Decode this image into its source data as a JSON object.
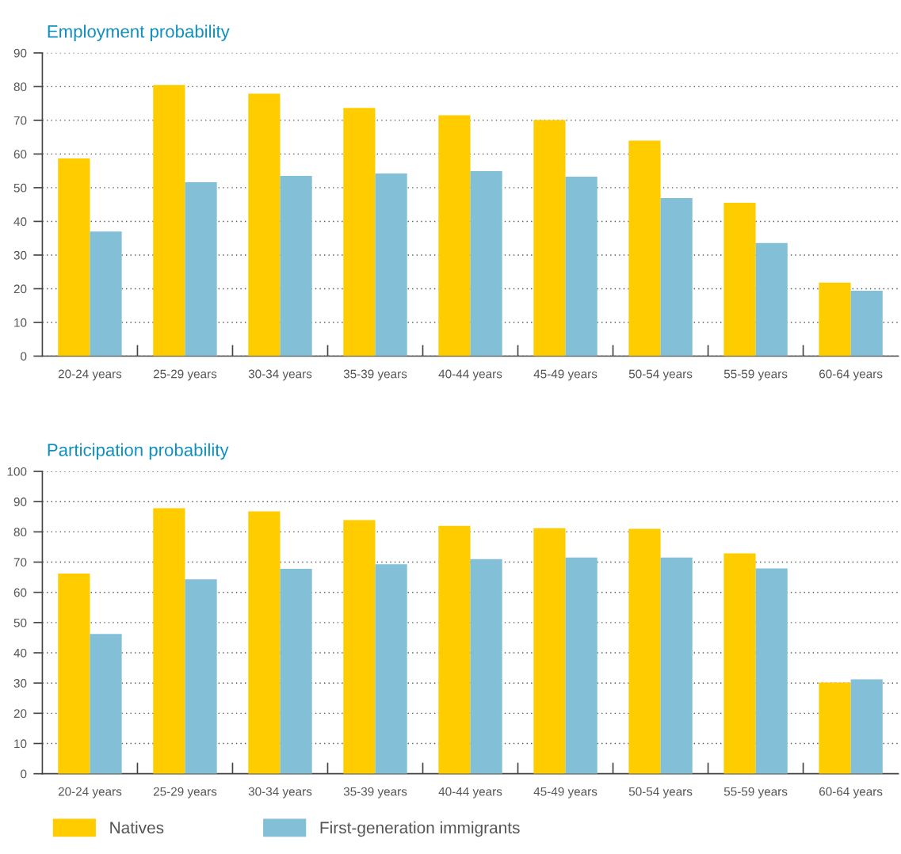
{
  "chart_data": [
    {
      "type": "bar",
      "title": "Employment probability",
      "categories": [
        "20-24 years",
        "25-29 years",
        "30-34 years",
        "35-39 years",
        "40-44 years",
        "45-49 years",
        "50-54 years",
        "55-59 years",
        "60-64 years"
      ],
      "series": [
        {
          "color": "#ffcc00",
          "values": [
            58.7,
            80.5,
            77.9,
            73.7,
            71.5,
            70.1,
            64.0,
            45.5,
            21.8
          ]
        },
        {
          "color": "#83c0d8",
          "values": [
            37.0,
            51.6,
            53.5,
            54.2,
            54.9,
            53.3,
            46.9,
            33.6,
            19.4
          ]
        }
      ],
      "ylim": [
        0,
        90
      ],
      "yticks": [
        0,
        10,
        20,
        30,
        40,
        50,
        60,
        70,
        80,
        90
      ],
      "grid": "y"
    },
    {
      "type": "bar",
      "title": "Participation probability",
      "categories": [
        "20-24 years",
        "25-29 years",
        "30-34 years",
        "35-39 years",
        "40-44 years",
        "45-49 years",
        "50-54 years",
        "55-59 years",
        "60-64 years"
      ],
      "series": [
        {
          "name": "Natives",
          "color": "#ffcc00",
          "values": [
            66.2,
            87.8,
            86.8,
            83.9,
            82.0,
            81.2,
            81.0,
            72.9,
            30.2
          ]
        },
        {
          "name": "First-generation immigrants",
          "color": "#83c0d8",
          "values": [
            46.2,
            64.3,
            67.8,
            69.3,
            71.0,
            71.5,
            71.5,
            67.9,
            31.2
          ]
        }
      ],
      "ylim": [
        0,
        100
      ],
      "yticks": [
        0,
        10,
        20,
        30,
        40,
        50,
        60,
        70,
        80,
        90,
        100
      ],
      "grid": "y",
      "legend": "bottom left"
    }
  ]
}
